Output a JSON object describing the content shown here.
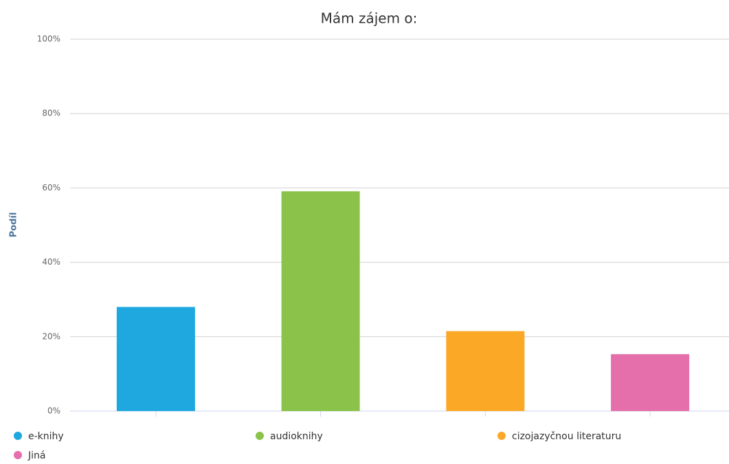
{
  "chart_data": {
    "type": "bar",
    "title": "Mám zájem o:",
    "y_label": "Podíl",
    "series": [
      {
        "name": "e-knihy",
        "color": "#1fa8e0",
        "values": [
          28
        ]
      },
      {
        "name": "audioknihy",
        "color": "#8bc34a",
        "values": [
          59.1
        ]
      },
      {
        "name": "cizojazyčnou literaturu",
        "color": "#fba826",
        "values": [
          21.5
        ]
      },
      {
        "name": "Jiná",
        "color": "#e56fab",
        "values": [
          15.3
        ]
      }
    ],
    "ylim": [
      0,
      100
    ],
    "yticks": [
      {
        "value": 0,
        "label": "0%"
      },
      {
        "value": 20,
        "label": "20%"
      },
      {
        "value": 40,
        "label": "40%"
      },
      {
        "value": 60,
        "label": "60%"
      },
      {
        "value": 80,
        "label": "80%"
      },
      {
        "value": 100,
        "label": "100%"
      }
    ],
    "grid": true,
    "legend": "bottom"
  }
}
